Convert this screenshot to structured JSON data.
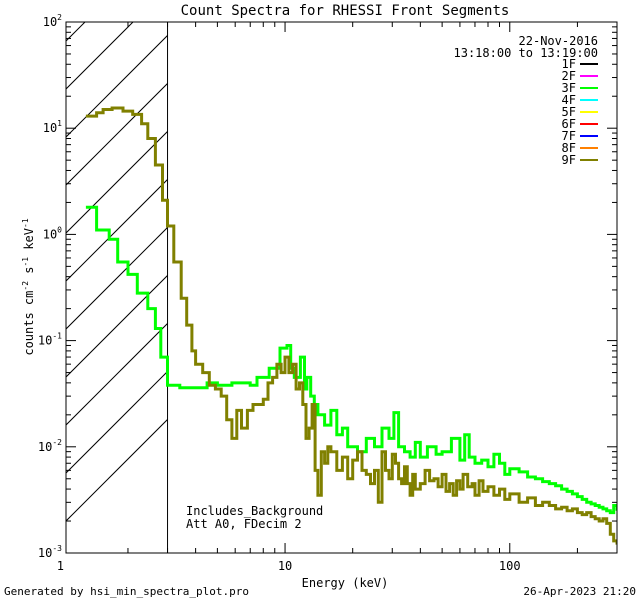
{
  "chart_data": {
    "type": "line",
    "title": "Count Spectra for RHESSI Front Segments",
    "xlabel": "Energy (keV)",
    "ylabel": "counts cm",
    "ylabel_parts": [
      "counts cm",
      "-2",
      " s",
      "-1",
      " keV",
      "-1"
    ],
    "xscale": "log",
    "yscale": "log",
    "xlim": [
      1.06,
      300
    ],
    "ylim": [
      0.001,
      100
    ],
    "x_ticks": [
      {
        "value": 1,
        "label": "1"
      },
      {
        "value": 10,
        "label": "10"
      },
      {
        "value": 100,
        "label": "100"
      }
    ],
    "y_ticks": [
      {
        "value": 0.001,
        "base": "10",
        "exp": "-3"
      },
      {
        "value": 0.01,
        "base": "10",
        "exp": "-2"
      },
      {
        "value": 0.1,
        "base": "10",
        "exp": "-1"
      },
      {
        "value": 1,
        "base": "10",
        "exp": "0"
      },
      {
        "value": 10,
        "base": "10",
        "exp": "1"
      },
      {
        "value": 100,
        "base": "10",
        "exp": "2"
      }
    ],
    "shaded_region": {
      "x_from": 1.06,
      "x_to": 3.0,
      "pattern": "diagonal hatching"
    },
    "date": "22-Nov-2016",
    "time_range": "13:18:00 to 13:19:00",
    "annotations": [
      "Includes_Background",
      "Att A0, FDecim 2"
    ],
    "legend": [
      {
        "name": "1F",
        "color": "#000000"
      },
      {
        "name": "2F",
        "color": "#ff00ff"
      },
      {
        "name": "3F",
        "color": "#00ff00"
      },
      {
        "name": "4F",
        "color": "#00ffff"
      },
      {
        "name": "5F",
        "color": "#ffff00"
      },
      {
        "name": "6F",
        "color": "#ff0000"
      },
      {
        "name": "7F",
        "color": "#0000ff"
      },
      {
        "name": "8F",
        "color": "#ff8000"
      },
      {
        "name": "9F",
        "color": "#808000"
      }
    ],
    "series": [
      {
        "name": "3F",
        "color": "#00ff00",
        "points": [
          [
            1.3,
            1.8
          ],
          [
            1.45,
            1.1
          ],
          [
            1.65,
            0.9
          ],
          [
            1.8,
            0.55
          ],
          [
            2.0,
            0.42
          ],
          [
            2.2,
            0.28
          ],
          [
            2.45,
            0.2
          ],
          [
            2.65,
            0.13
          ],
          [
            2.8,
            0.07
          ],
          [
            3.0,
            0.038
          ],
          [
            3.4,
            0.036
          ],
          [
            4.0,
            0.036
          ],
          [
            4.5,
            0.04
          ],
          [
            5.0,
            0.038
          ],
          [
            5.8,
            0.04
          ],
          [
            6.5,
            0.04
          ],
          [
            7.0,
            0.038
          ],
          [
            7.5,
            0.045
          ],
          [
            8.5,
            0.055
          ],
          [
            9.5,
            0.085
          ],
          [
            10.2,
            0.09
          ],
          [
            10.6,
            0.055
          ],
          [
            11.0,
            0.045
          ],
          [
            11.7,
            0.07
          ],
          [
            12.2,
            0.035
          ],
          [
            12.5,
            0.045
          ],
          [
            13.0,
            0.03
          ],
          [
            13.5,
            0.025
          ],
          [
            14.0,
            0.02
          ],
          [
            15.0,
            0.016
          ],
          [
            16.0,
            0.022
          ],
          [
            17.0,
            0.013
          ],
          [
            18.0,
            0.015
          ],
          [
            19.0,
            0.01
          ],
          [
            21.0,
            0.009
          ],
          [
            23.0,
            0.012
          ],
          [
            25.0,
            0.01
          ],
          [
            27.0,
            0.015
          ],
          [
            29.0,
            0.012
          ],
          [
            30.5,
            0.021
          ],
          [
            32.0,
            0.01
          ],
          [
            34.0,
            0.009
          ],
          [
            36.0,
            0.008
          ],
          [
            38.0,
            0.011
          ],
          [
            40.0,
            0.008
          ],
          [
            43.0,
            0.01
          ],
          [
            47.0,
            0.0085
          ],
          [
            50.0,
            0.009
          ],
          [
            55.0,
            0.012
          ],
          [
            60.0,
            0.0075
          ],
          [
            63.0,
            0.013
          ],
          [
            66.0,
            0.008
          ],
          [
            70.0,
            0.007
          ],
          [
            75.0,
            0.0075
          ],
          [
            80.0,
            0.0065
          ],
          [
            85.0,
            0.0085
          ],
          [
            90.0,
            0.007
          ],
          [
            95.0,
            0.0055
          ],
          [
            100.0,
            0.0062
          ],
          [
            110.0,
            0.0058
          ],
          [
            120.0,
            0.0052
          ],
          [
            130.0,
            0.005
          ],
          [
            140.0,
            0.0047
          ],
          [
            150.0,
            0.0045
          ],
          [
            160.0,
            0.0043
          ],
          [
            170.0,
            0.004
          ],
          [
            180.0,
            0.0038
          ],
          [
            190.0,
            0.0036
          ],
          [
            200.0,
            0.0034
          ],
          [
            210.0,
            0.0032
          ],
          [
            220.0,
            0.003
          ],
          [
            230.0,
            0.0029
          ],
          [
            240.0,
            0.0028
          ],
          [
            250.0,
            0.0027
          ],
          [
            260.0,
            0.0026
          ],
          [
            270.0,
            0.0025
          ],
          [
            280.0,
            0.0024
          ],
          [
            290.0,
            0.0028
          ],
          [
            300.0,
            0.0025
          ]
        ]
      },
      {
        "name": "9F",
        "color": "#808000",
        "points": [
          [
            1.3,
            13.0
          ],
          [
            1.45,
            14.0
          ],
          [
            1.55,
            15.0
          ],
          [
            1.7,
            15.5
          ],
          [
            1.9,
            14.5
          ],
          [
            2.1,
            13.5
          ],
          [
            2.3,
            11.0
          ],
          [
            2.45,
            8.0
          ],
          [
            2.65,
            4.5
          ],
          [
            2.85,
            2.1
          ],
          [
            3.0,
            1.2
          ],
          [
            3.2,
            0.55
          ],
          [
            3.45,
            0.25
          ],
          [
            3.65,
            0.14
          ],
          [
            3.85,
            0.08
          ],
          [
            4.0,
            0.06
          ],
          [
            4.3,
            0.05
          ],
          [
            4.6,
            0.038
          ],
          [
            4.9,
            0.035
          ],
          [
            5.2,
            0.03
          ],
          [
            5.5,
            0.018
          ],
          [
            5.8,
            0.012
          ],
          [
            6.1,
            0.022
          ],
          [
            6.4,
            0.015
          ],
          [
            6.8,
            0.022
          ],
          [
            7.2,
            0.025
          ],
          [
            7.6,
            0.025
          ],
          [
            8.0,
            0.028
          ],
          [
            8.4,
            0.04
          ],
          [
            8.8,
            0.045
          ],
          [
            9.2,
            0.06
          ],
          [
            9.6,
            0.05
          ],
          [
            10.0,
            0.07
          ],
          [
            10.4,
            0.05
          ],
          [
            10.8,
            0.06
          ],
          [
            11.2,
            0.035
          ],
          [
            11.6,
            0.04
          ],
          [
            12.0,
            0.025
          ],
          [
            12.4,
            0.012
          ],
          [
            12.8,
            0.015
          ],
          [
            13.2,
            0.025
          ],
          [
            13.6,
            0.006
          ],
          [
            14.0,
            0.0035
          ],
          [
            14.5,
            0.009
          ],
          [
            15.0,
            0.007
          ],
          [
            15.5,
            0.01
          ],
          [
            16.0,
            0.009
          ],
          [
            17.0,
            0.006
          ],
          [
            18.0,
            0.008
          ],
          [
            19.0,
            0.005
          ],
          [
            20.0,
            0.0075
          ],
          [
            21.0,
            0.009
          ],
          [
            22.0,
            0.006
          ],
          [
            23.0,
            0.0055
          ],
          [
            24.0,
            0.0045
          ],
          [
            25.0,
            0.006
          ],
          [
            26.0,
            0.003
          ],
          [
            27.0,
            0.009
          ],
          [
            28.0,
            0.006
          ],
          [
            29.0,
            0.005
          ],
          [
            30.0,
            0.0085
          ],
          [
            31.0,
            0.007
          ],
          [
            32.0,
            0.005
          ],
          [
            33.0,
            0.0045
          ],
          [
            34.0,
            0.0065
          ],
          [
            35.0,
            0.0045
          ],
          [
            36.0,
            0.0035
          ],
          [
            37.0,
            0.0055
          ],
          [
            38.0,
            0.004
          ],
          [
            40.0,
            0.0045
          ],
          [
            42.0,
            0.006
          ],
          [
            44.0,
            0.0048
          ],
          [
            46.0,
            0.005
          ],
          [
            48.0,
            0.0042
          ],
          [
            50.0,
            0.0055
          ],
          [
            52.0,
            0.0038
          ],
          [
            54.0,
            0.0045
          ],
          [
            56.0,
            0.0035
          ],
          [
            58.0,
            0.0048
          ],
          [
            60.0,
            0.004
          ],
          [
            62.0,
            0.0055
          ],
          [
            65.0,
            0.0042
          ],
          [
            68.0,
            0.0045
          ],
          [
            70.0,
            0.0035
          ],
          [
            73.0,
            0.0048
          ],
          [
            76.0,
            0.0038
          ],
          [
            80.0,
            0.0042
          ],
          [
            85.0,
            0.0035
          ],
          [
            90.0,
            0.004
          ],
          [
            95.0,
            0.0032
          ],
          [
            100.0,
            0.0036
          ],
          [
            110.0,
            0.003
          ],
          [
            120.0,
            0.0033
          ],
          [
            130.0,
            0.0028
          ],
          [
            140.0,
            0.003
          ],
          [
            150.0,
            0.0028
          ],
          [
            160.0,
            0.0026
          ],
          [
            170.0,
            0.0027
          ],
          [
            180.0,
            0.0025
          ],
          [
            190.0,
            0.0026
          ],
          [
            200.0,
            0.0024
          ],
          [
            210.0,
            0.0023
          ],
          [
            220.0,
            0.0024
          ],
          [
            230.0,
            0.0022
          ],
          [
            240.0,
            0.0021
          ],
          [
            250.0,
            0.002
          ],
          [
            260.0,
            0.0021
          ],
          [
            270.0,
            0.0019
          ],
          [
            280.0,
            0.0015
          ],
          [
            290.0,
            0.0013
          ],
          [
            300.0,
            0.0012
          ]
        ]
      }
    ]
  },
  "footer": {
    "generated_by": "Generated by hsi_min_spectra_plot.pro",
    "timestamp": "26-Apr-2023 21:20"
  }
}
